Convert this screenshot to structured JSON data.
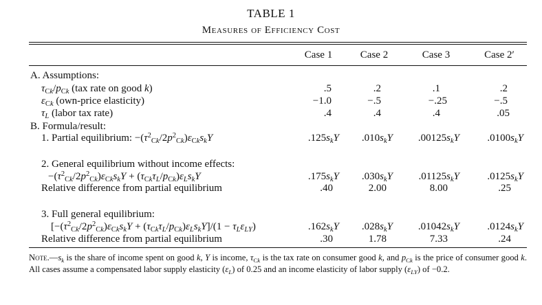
{
  "title": "TABLE 1",
  "subtitle": "Measures of Efficiency Cost",
  "columns": [
    "Case 1",
    "Case 2",
    "Case 3",
    "Case 2′"
  ],
  "rows": [
    {
      "label": "A. Assumptions:",
      "values": []
    },
    {
      "label": "τCk/pCk (tax rate on good k)",
      "values": [
        ".5",
        ".2",
        ".1",
        ".2"
      ]
    },
    {
      "label": "εCk (own-price elasticity)",
      "values": [
        "−1.0",
        "−.5",
        "−.25",
        "−.5"
      ]
    },
    {
      "label": "τL (labor tax rate)",
      "values": [
        ".4",
        ".4",
        ".4",
        ".05"
      ]
    },
    {
      "label": "B. Formula/result:",
      "values": []
    },
    {
      "label": "1. Partial equilibrium: −(τ²Ck/2p²Ck)εCk skY",
      "values": [
        ".125skY",
        ".010skY",
        ".00125skY",
        ".0100skY"
      ]
    },
    {
      "label": "2. General equilibrium without income effects:",
      "values": []
    },
    {
      "label": "−(τ²Ck/2p²Ck)εCk skY + (τCk τL/pCk)εL sk Y",
      "values": [
        ".175skY",
        ".030skY",
        ".01125skY",
        ".0125skY"
      ]
    },
    {
      "label": "Relative difference from partial equilibrium",
      "values": [
        ".40",
        "2.00",
        "8.00",
        ".25"
      ]
    },
    {
      "label": "3. Full general equilibrium:",
      "values": []
    },
    {
      "label": "[−(τ²Ck/2p²Ck)εCk skY + (τCk τL/pCk)εL skY]/(1 − τL εLY)",
      "values": [
        ".162skY",
        ".028skY",
        ".01042skY",
        ".0124skY"
      ]
    },
    {
      "label": "Relative difference from partial equilibrium",
      "values": [
        ".30",
        "1.78",
        "7.33",
        ".24"
      ]
    }
  ],
  "note": {
    "lead": "Note.",
    "text": "—sk is the share of income spent on good k, Y is income, τCk is the tax rate on consumer good k, and pCk is the price of consumer good k. All cases assume a compensated labor supply elasticity (εL) of 0.25 and an income elasticity of labor supply (εLY) of −0.2."
  }
}
